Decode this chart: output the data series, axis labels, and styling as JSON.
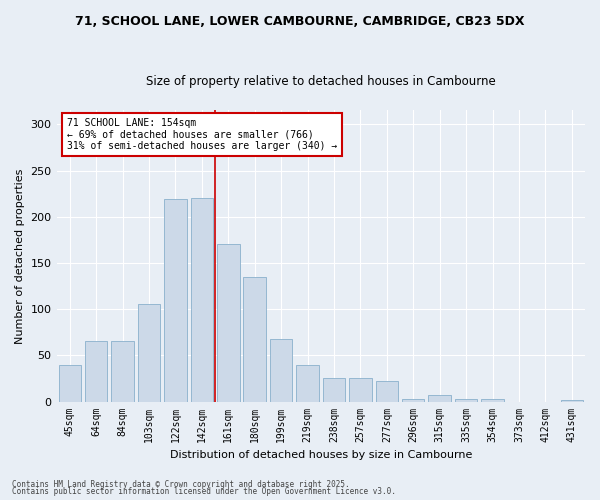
{
  "title1": "71, SCHOOL LANE, LOWER CAMBOURNE, CAMBRIDGE, CB23 5DX",
  "title2": "Size of property relative to detached houses in Cambourne",
  "xlabel": "Distribution of detached houses by size in Cambourne",
  "ylabel": "Number of detached properties",
  "categories": [
    "45sqm",
    "64sqm",
    "84sqm",
    "103sqm",
    "122sqm",
    "142sqm",
    "161sqm",
    "180sqm",
    "199sqm",
    "219sqm",
    "238sqm",
    "257sqm",
    "277sqm",
    "296sqm",
    "315sqm",
    "335sqm",
    "354sqm",
    "373sqm",
    "412sqm",
    "431sqm"
  ],
  "values": [
    40,
    65,
    65,
    106,
    219,
    220,
    170,
    135,
    68,
    40,
    25,
    25,
    22,
    3,
    7,
    3,
    3,
    0,
    0,
    2
  ],
  "bar_color": "#ccd9e8",
  "bar_edgecolor": "#8ab0cc",
  "vline_color": "#cc0000",
  "vline_pos": 5.5,
  "annotation_text": "71 SCHOOL LANE: 154sqm\n← 69% of detached houses are smaller (766)\n31% of semi-detached houses are larger (340) →",
  "annotation_box_facecolor": "#ffffff",
  "annotation_box_edgecolor": "#cc0000",
  "ylim": [
    0,
    315
  ],
  "yticks": [
    0,
    50,
    100,
    150,
    200,
    250,
    300
  ],
  "footer1": "Contains HM Land Registry data © Crown copyright and database right 2025.",
  "footer2": "Contains public sector information licensed under the Open Government Licence v3.0.",
  "bg_color": "#e8eef5",
  "title1_fontsize": 9,
  "title2_fontsize": 8.5,
  "ylabel_fontsize": 8,
  "xlabel_fontsize": 8,
  "tick_fontsize": 7,
  "annotation_fontsize": 7,
  "footer_fontsize": 5.5
}
